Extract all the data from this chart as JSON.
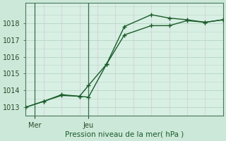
{
  "xlabel": "Pression niveau de la mer( hPa )",
  "background_color": "#cce8d8",
  "plot_bg_color": "#d8efe4",
  "grid_color_major": "#c8b8c8",
  "grid_color_minor": "#d8c8d8",
  "hgrid_color": "#b8d8c8",
  "line_color": "#1a5c2a",
  "vline_color": "#3a6c4a",
  "ylim": [
    1012.5,
    1019.2
  ],
  "xlim": [
    0,
    11
  ],
  "yticks": [
    1013,
    1014,
    1015,
    1016,
    1017,
    1018
  ],
  "vline_x": [
    0.5,
    3.5
  ],
  "xtick_positions": [
    0.5,
    3.5
  ],
  "xtick_labels": [
    "Mer",
    "Jeu"
  ],
  "series1_x": [
    0,
    1,
    2,
    3,
    3.5,
    4.5,
    5.5,
    7,
    8,
    9,
    10,
    11
  ],
  "series1_y": [
    1013.0,
    1013.35,
    1013.75,
    1013.65,
    1013.6,
    1015.55,
    1017.8,
    1018.5,
    1018.3,
    1018.2,
    1018.05,
    1018.2
  ],
  "series2_x": [
    0,
    1,
    2,
    3,
    3.5,
    4.5,
    5.5,
    7,
    8,
    9,
    10,
    11
  ],
  "series2_y": [
    1013.0,
    1013.35,
    1013.7,
    1013.65,
    1014.3,
    1015.55,
    1017.3,
    1017.85,
    1017.85,
    1018.15,
    1018.05,
    1018.2
  ]
}
